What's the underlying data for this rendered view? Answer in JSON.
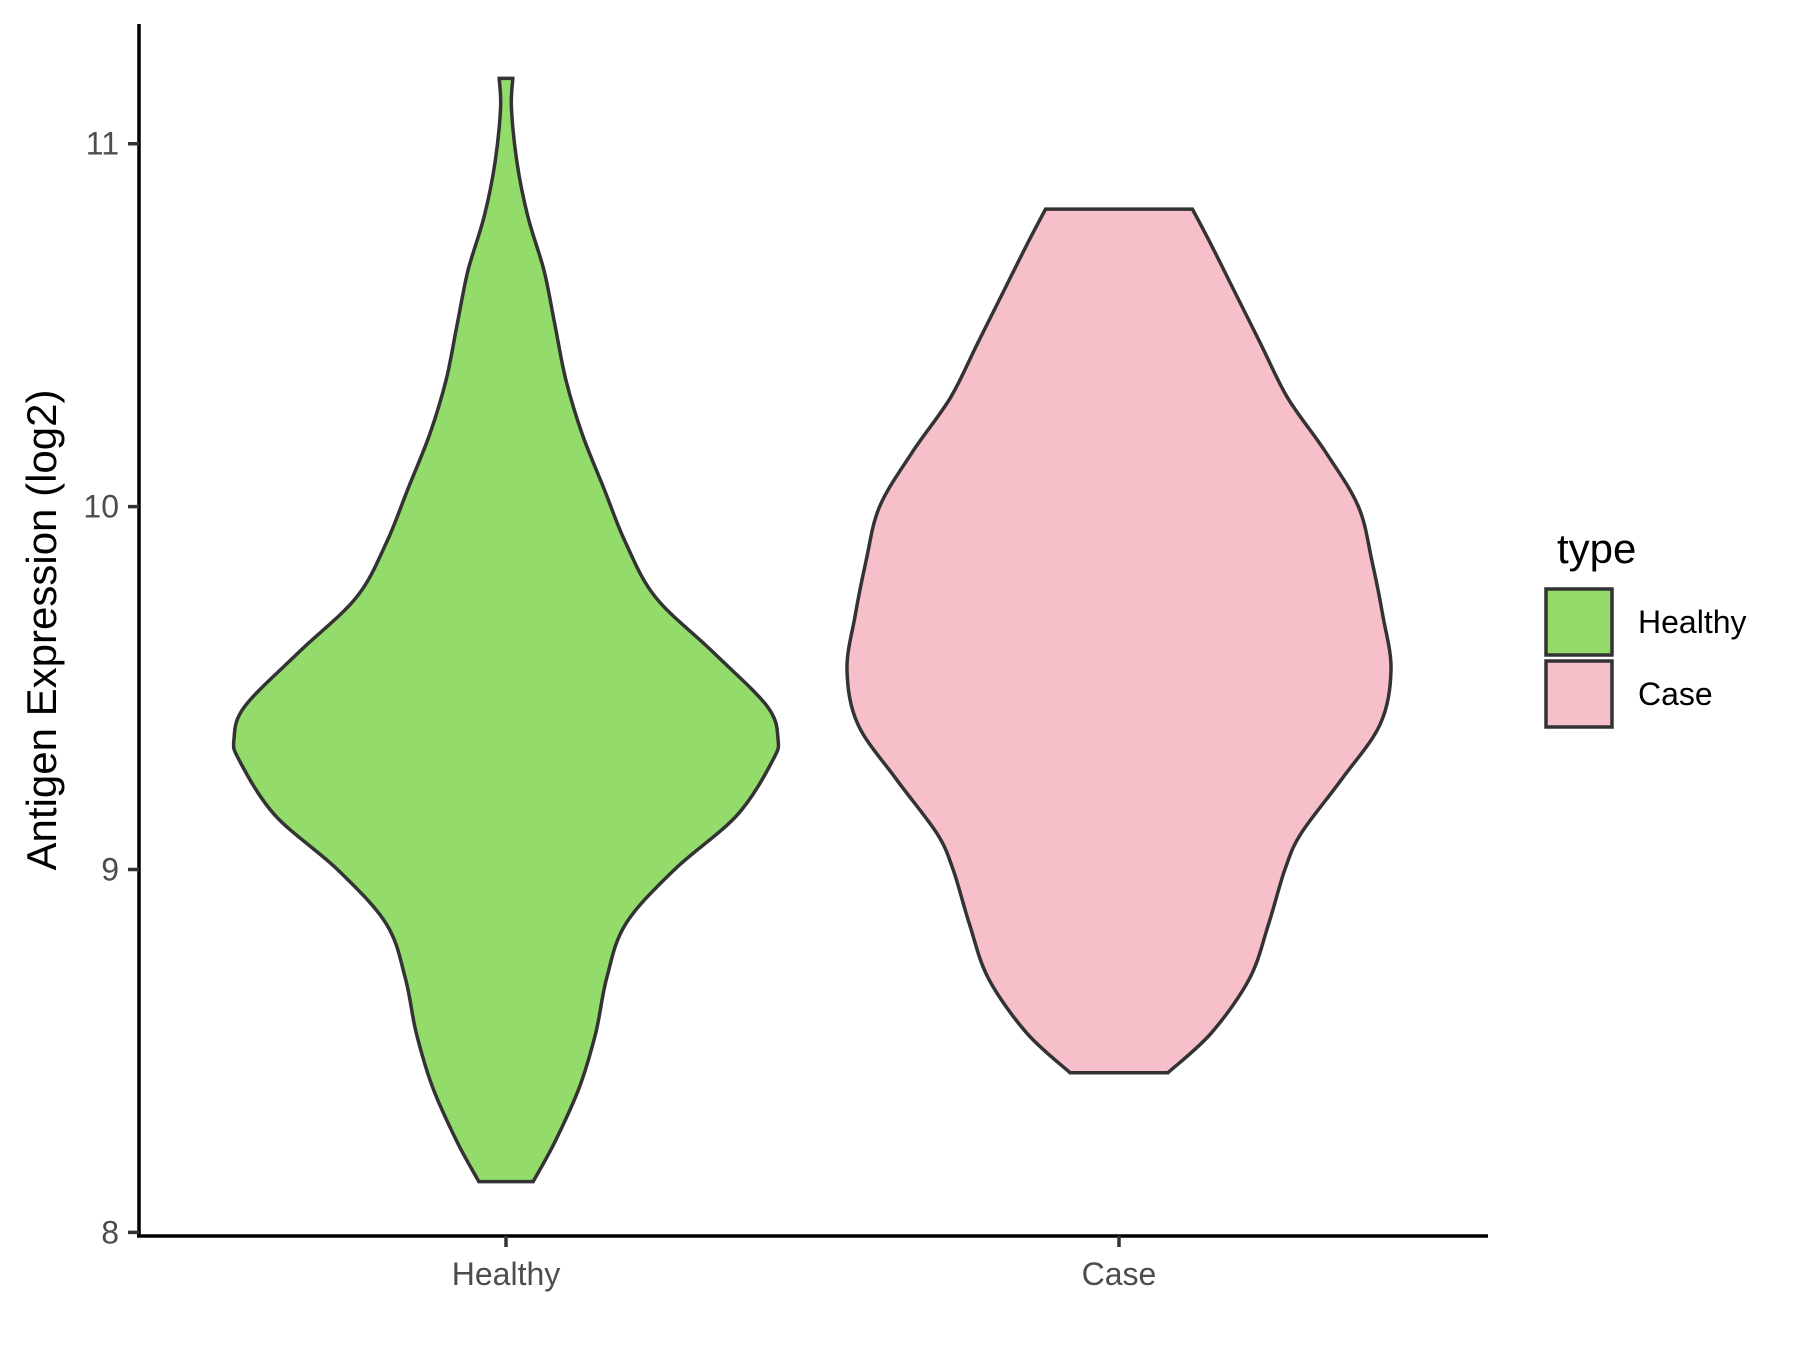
{
  "chart_data": {
    "type": "violin",
    "ylabel": "Antigen Expression (log2)",
    "xlabel": "",
    "categories": [
      "Healthy",
      "Case"
    ],
    "ylim": [
      7.99,
      11.33
    ],
    "yticks": [
      8,
      9,
      10,
      11
    ],
    "ytick_labels": [
      "8",
      "9",
      "10",
      "11"
    ],
    "legend": {
      "title": "type",
      "position": "right",
      "entries": [
        {
          "label": "Healthy",
          "color": "#93dc6b"
        },
        {
          "label": "Case",
          "color": "#f7bfca"
        }
      ]
    },
    "series": [
      {
        "name": "Healthy",
        "color": "#93dc6b",
        "min": 8.14,
        "max": 11.18,
        "density_profile": [
          [
            8.14,
            0.1
          ],
          [
            8.25,
            0.18
          ],
          [
            8.4,
            0.27
          ],
          [
            8.55,
            0.33
          ],
          [
            8.7,
            0.37
          ],
          [
            8.85,
            0.44
          ],
          [
            9.0,
            0.62
          ],
          [
            9.15,
            0.85
          ],
          [
            9.3,
            0.98
          ],
          [
            9.36,
            1.0
          ],
          [
            9.45,
            0.96
          ],
          [
            9.6,
            0.76
          ],
          [
            9.75,
            0.55
          ],
          [
            9.9,
            0.44
          ],
          [
            10.05,
            0.36
          ],
          [
            10.2,
            0.28
          ],
          [
            10.35,
            0.22
          ],
          [
            10.5,
            0.18
          ],
          [
            10.65,
            0.14
          ],
          [
            10.8,
            0.08
          ],
          [
            10.95,
            0.04
          ],
          [
            11.1,
            0.02
          ],
          [
            11.18,
            0.025
          ]
        ]
      },
      {
        "name": "Case",
        "color": "#f7bfca",
        "min": 8.44,
        "max": 10.82,
        "density_profile": [
          [
            8.44,
            0.18
          ],
          [
            8.55,
            0.34
          ],
          [
            8.7,
            0.48
          ],
          [
            8.85,
            0.55
          ],
          [
            9.0,
            0.61
          ],
          [
            9.1,
            0.67
          ],
          [
            9.25,
            0.82
          ],
          [
            9.4,
            0.96
          ],
          [
            9.55,
            1.0
          ],
          [
            9.7,
            0.97
          ],
          [
            9.85,
            0.93
          ],
          [
            10.0,
            0.88
          ],
          [
            10.15,
            0.76
          ],
          [
            10.3,
            0.62
          ],
          [
            10.45,
            0.52
          ],
          [
            10.6,
            0.42
          ],
          [
            10.72,
            0.34
          ],
          [
            10.82,
            0.27
          ]
        ]
      }
    ]
  }
}
